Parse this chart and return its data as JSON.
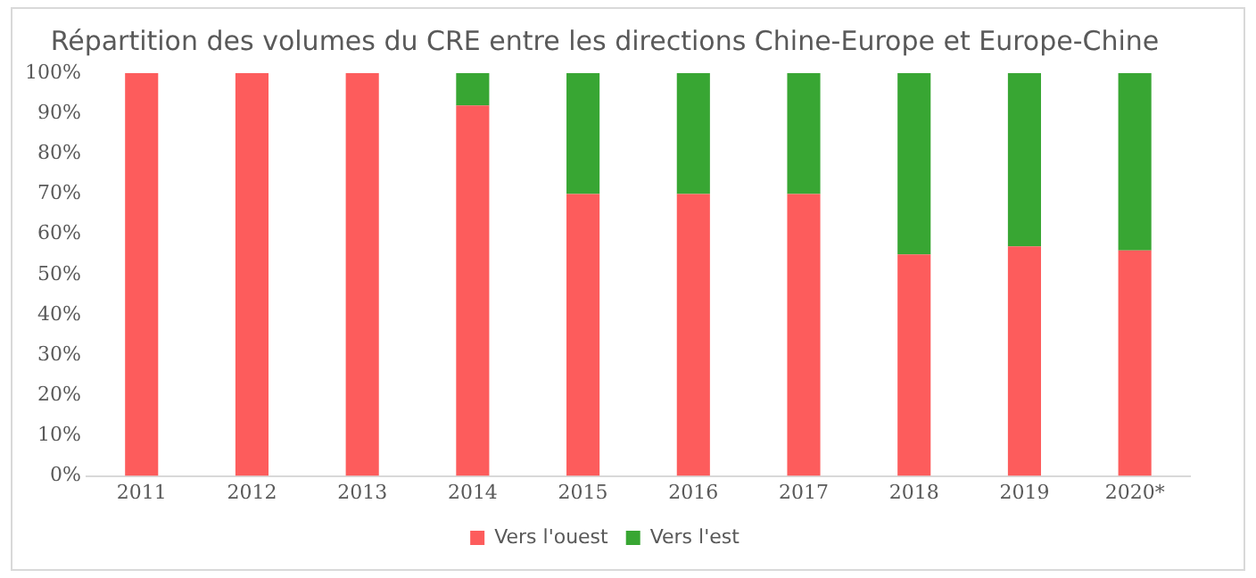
{
  "chart_data": {
    "type": "bar",
    "stacked": true,
    "title": "Répartition des volumes du CRE entre les directions Chine-Europe et Europe-Chine",
    "categories": [
      "2011",
      "2012",
      "2013",
      "2014",
      "2015",
      "2016",
      "2017",
      "2018",
      "2019",
      "2020*"
    ],
    "series": [
      {
        "name": "Vers l'ouest",
        "color": "#fd5c5c",
        "values": [
          100,
          100,
          100,
          92,
          70,
          70,
          70,
          55,
          57,
          56
        ]
      },
      {
        "name": "Vers l'est",
        "color": "#38a633",
        "values": [
          0,
          0,
          0,
          8,
          30,
          30,
          30,
          45,
          43,
          44
        ]
      }
    ],
    "ylim": [
      0,
      100
    ],
    "yticks": [
      {
        "value": 0,
        "label": "0%"
      },
      {
        "value": 10,
        "label": "10%"
      },
      {
        "value": 20,
        "label": "20%"
      },
      {
        "value": 30,
        "label": "30%"
      },
      {
        "value": 40,
        "label": "40%"
      },
      {
        "value": 50,
        "label": "50%"
      },
      {
        "value": 60,
        "label": "60%"
      },
      {
        "value": 70,
        "label": "70%"
      },
      {
        "value": 80,
        "label": "80%"
      },
      {
        "value": 90,
        "label": "90%"
      },
      {
        "value": 100,
        "label": "100%"
      }
    ],
    "grid": false,
    "legend": "bottom"
  }
}
